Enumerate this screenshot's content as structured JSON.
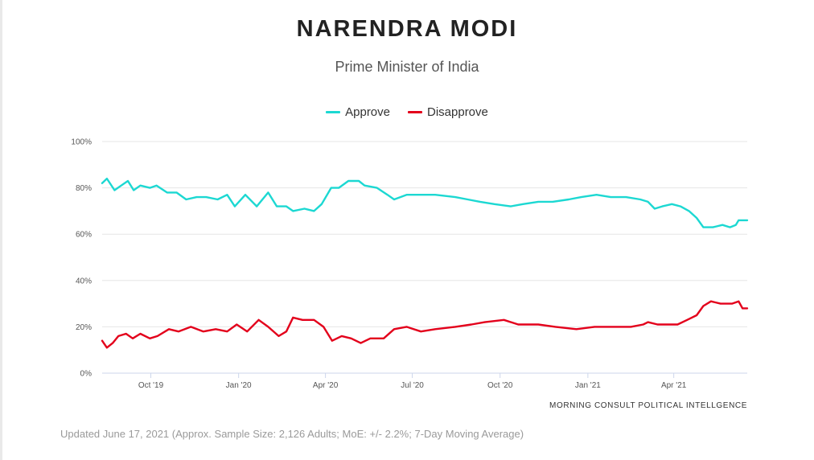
{
  "title": "NARENDRA MODI",
  "subtitle": "Prime Minister of India",
  "legend": [
    {
      "label": "Approve",
      "color": "#1cd8d2"
    },
    {
      "label": "Disapprove",
      "color": "#e3001b"
    }
  ],
  "source": "MORNING CONSULT POLITICAL INTELLGENCE",
  "footnote": "Updated June 17, 2021 (Approx. Sample Size: 2,126 Adults; MoE: +/- 2.2%; 7-Day Moving Average)",
  "chart_data": {
    "type": "line",
    "title": "NARENDRA MODI",
    "subtitle": "Prime Minister of India",
    "xlim": [
      "2019-08-11",
      "2021-06-17"
    ],
    "ylim": [
      0,
      100
    ],
    "yticks": [
      0,
      20,
      40,
      60,
      80,
      100
    ],
    "ytick_labels": [
      "0%",
      "20%",
      "40%",
      "60%",
      "80%",
      "100%"
    ],
    "xticks": [
      {
        "date": "2019-10-01",
        "label": "Oct '19"
      },
      {
        "date": "2020-01-01",
        "label": "Jan '20"
      },
      {
        "date": "2020-04-01",
        "label": "Apr '20"
      },
      {
        "date": "2020-07-01",
        "label": "Jul '20"
      },
      {
        "date": "2020-10-01",
        "label": "Oct '20"
      },
      {
        "date": "2021-01-01",
        "label": "Jan '21"
      },
      {
        "date": "2021-04-01",
        "label": "Apr '21"
      }
    ],
    "grid": true,
    "legend_position": "top-center",
    "series": [
      {
        "name": "Approve",
        "color": "#1cd8d2",
        "points": [
          [
            "2019-08-11",
            82
          ],
          [
            "2019-08-16",
            84
          ],
          [
            "2019-08-24",
            79
          ],
          [
            "2019-08-31",
            81
          ],
          [
            "2019-09-07",
            83
          ],
          [
            "2019-09-13",
            79
          ],
          [
            "2019-09-20",
            81
          ],
          [
            "2019-09-30",
            80
          ],
          [
            "2019-10-07",
            81
          ],
          [
            "2019-10-18",
            78
          ],
          [
            "2019-10-28",
            78
          ],
          [
            "2019-11-07",
            75
          ],
          [
            "2019-11-18",
            76
          ],
          [
            "2019-11-28",
            76
          ],
          [
            "2019-12-10",
            75
          ],
          [
            "2019-12-20",
            77
          ],
          [
            "2019-12-28",
            72
          ],
          [
            "2020-01-08",
            77
          ],
          [
            "2020-01-20",
            72
          ],
          [
            "2020-02-01",
            78
          ],
          [
            "2020-02-10",
            72
          ],
          [
            "2020-02-20",
            72
          ],
          [
            "2020-02-27",
            70
          ],
          [
            "2020-03-10",
            71
          ],
          [
            "2020-03-20",
            70
          ],
          [
            "2020-03-28",
            73
          ],
          [
            "2020-04-07",
            80
          ],
          [
            "2020-04-15",
            80
          ],
          [
            "2020-04-25",
            83
          ],
          [
            "2020-05-06",
            83
          ],
          [
            "2020-05-12",
            81
          ],
          [
            "2020-05-25",
            80
          ],
          [
            "2020-06-05",
            77
          ],
          [
            "2020-06-12",
            75
          ],
          [
            "2020-06-25",
            77
          ],
          [
            "2020-07-10",
            77
          ],
          [
            "2020-07-25",
            77
          ],
          [
            "2020-08-15",
            76
          ],
          [
            "2020-08-28",
            75
          ],
          [
            "2020-09-10",
            74
          ],
          [
            "2020-09-25",
            73
          ],
          [
            "2020-10-12",
            72
          ],
          [
            "2020-10-25",
            73
          ],
          [
            "2020-11-10",
            74
          ],
          [
            "2020-11-25",
            74
          ],
          [
            "2020-12-12",
            75
          ],
          [
            "2020-12-25",
            76
          ],
          [
            "2021-01-10",
            77
          ],
          [
            "2021-01-25",
            76
          ],
          [
            "2021-02-10",
            76
          ],
          [
            "2021-02-25",
            75
          ],
          [
            "2021-03-05",
            74
          ],
          [
            "2021-03-12",
            71
          ],
          [
            "2021-03-20",
            72
          ],
          [
            "2021-03-30",
            73
          ],
          [
            "2021-04-08",
            72
          ],
          [
            "2021-04-17",
            70
          ],
          [
            "2021-04-25",
            67
          ],
          [
            "2021-05-02",
            63
          ],
          [
            "2021-05-12",
            63
          ],
          [
            "2021-05-22",
            64
          ],
          [
            "2021-05-30",
            63
          ],
          [
            "2021-06-05",
            64
          ],
          [
            "2021-06-08",
            66
          ],
          [
            "2021-06-17",
            66
          ]
        ]
      },
      {
        "name": "Disapprove",
        "color": "#e3001b",
        "points": [
          [
            "2019-08-11",
            14
          ],
          [
            "2019-08-16",
            11
          ],
          [
            "2019-08-22",
            13
          ],
          [
            "2019-08-28",
            16
          ],
          [
            "2019-09-05",
            17
          ],
          [
            "2019-09-12",
            15
          ],
          [
            "2019-09-20",
            17
          ],
          [
            "2019-09-30",
            15
          ],
          [
            "2019-10-08",
            16
          ],
          [
            "2019-10-20",
            19
          ],
          [
            "2019-10-30",
            18
          ],
          [
            "2019-11-12",
            20
          ],
          [
            "2019-11-25",
            18
          ],
          [
            "2019-12-08",
            19
          ],
          [
            "2019-12-20",
            18
          ],
          [
            "2019-12-30",
            21
          ],
          [
            "2020-01-10",
            18
          ],
          [
            "2020-01-22",
            23
          ],
          [
            "2020-02-01",
            20
          ],
          [
            "2020-02-12",
            16
          ],
          [
            "2020-02-20",
            18
          ],
          [
            "2020-02-27",
            24
          ],
          [
            "2020-03-08",
            23
          ],
          [
            "2020-03-20",
            23
          ],
          [
            "2020-03-30",
            20
          ],
          [
            "2020-04-08",
            14
          ],
          [
            "2020-04-18",
            16
          ],
          [
            "2020-04-28",
            15
          ],
          [
            "2020-05-08",
            13
          ],
          [
            "2020-05-18",
            15
          ],
          [
            "2020-06-01",
            15
          ],
          [
            "2020-06-12",
            19
          ],
          [
            "2020-06-25",
            20
          ],
          [
            "2020-07-10",
            18
          ],
          [
            "2020-07-25",
            19
          ],
          [
            "2020-08-15",
            20
          ],
          [
            "2020-09-01",
            21
          ],
          [
            "2020-09-15",
            22
          ],
          [
            "2020-10-05",
            23
          ],
          [
            "2020-10-20",
            21
          ],
          [
            "2020-11-10",
            21
          ],
          [
            "2020-11-28",
            20
          ],
          [
            "2020-12-20",
            19
          ],
          [
            "2021-01-08",
            20
          ],
          [
            "2021-01-25",
            20
          ],
          [
            "2021-02-15",
            20
          ],
          [
            "2021-02-28",
            21
          ],
          [
            "2021-03-05",
            22
          ],
          [
            "2021-03-15",
            21
          ],
          [
            "2021-03-25",
            21
          ],
          [
            "2021-04-05",
            21
          ],
          [
            "2021-04-15",
            23
          ],
          [
            "2021-04-25",
            25
          ],
          [
            "2021-05-02",
            29
          ],
          [
            "2021-05-10",
            31
          ],
          [
            "2021-05-20",
            30
          ],
          [
            "2021-06-01",
            30
          ],
          [
            "2021-06-08",
            31
          ],
          [
            "2021-06-12",
            28
          ],
          [
            "2021-06-17",
            28
          ]
        ]
      }
    ]
  }
}
